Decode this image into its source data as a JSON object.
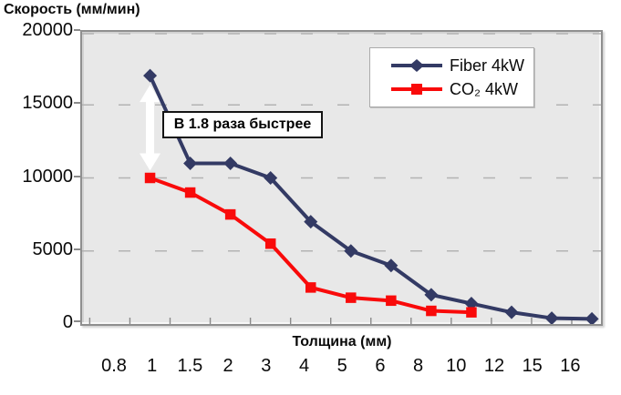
{
  "chart": {
    "y_axis_title": "Скорость (мм/мин)",
    "x_axis_title": "Толщина (мм)",
    "annotation_label": "В 1.8 раза быстрее",
    "colors": {
      "fiber": "#333a64",
      "co2": "#f90a0a",
      "plot_background": "#e8e8e8",
      "gridline": "#b3b3b3",
      "arrow": "#ffffff"
    }
  },
  "legend": {
    "position": "top-right",
    "items": [
      {
        "label": "Fiber 4kW",
        "marker": "diamond",
        "color": "#333a64"
      },
      {
        "label": "CO₂ 4kW",
        "marker": "square",
        "color": "#f90a0a"
      }
    ]
  },
  "chart_data": {
    "type": "line",
    "title": "",
    "xlabel": "Толщина (мм)",
    "ylabel": "Скорость (мм/мин)",
    "categories": [
      "0.8",
      "1",
      "1.5",
      "2",
      "3",
      "4",
      "5",
      "6",
      "8",
      "10",
      "12",
      "15",
      "16"
    ],
    "y_ticks": [
      0,
      5000,
      10000,
      15000,
      20000
    ],
    "ylim": [
      0,
      20000
    ],
    "grid": "dashed-horizontal",
    "legend_position": "top-right",
    "series": [
      {
        "name": "Fiber 4kW",
        "color": "#333a64",
        "marker": "diamond",
        "x": [
          "1",
          "1.5",
          "2",
          "3",
          "4",
          "5",
          "6",
          "8",
          "10",
          "12",
          "15",
          "16"
        ],
        "values": [
          17000,
          11000,
          11000,
          10000,
          7000,
          5000,
          4000,
          2000,
          1400,
          800,
          400,
          350
        ]
      },
      {
        "name": "CO₂ 4kW",
        "color": "#f90a0a",
        "marker": "square",
        "x": [
          "1",
          "1.5",
          "2",
          "3",
          "4",
          "5",
          "6",
          "8",
          "10"
        ],
        "values": [
          10000,
          9000,
          7500,
          5500,
          2500,
          1800,
          1600,
          900,
          800
        ]
      }
    ],
    "annotation": {
      "text": "В 1.8 раза быстрее",
      "at_category": "1",
      "from_value": 17000,
      "to_value": 10000,
      "meaning": "white double-headed vertical arrow between the two series at thickness 1 mm"
    }
  }
}
